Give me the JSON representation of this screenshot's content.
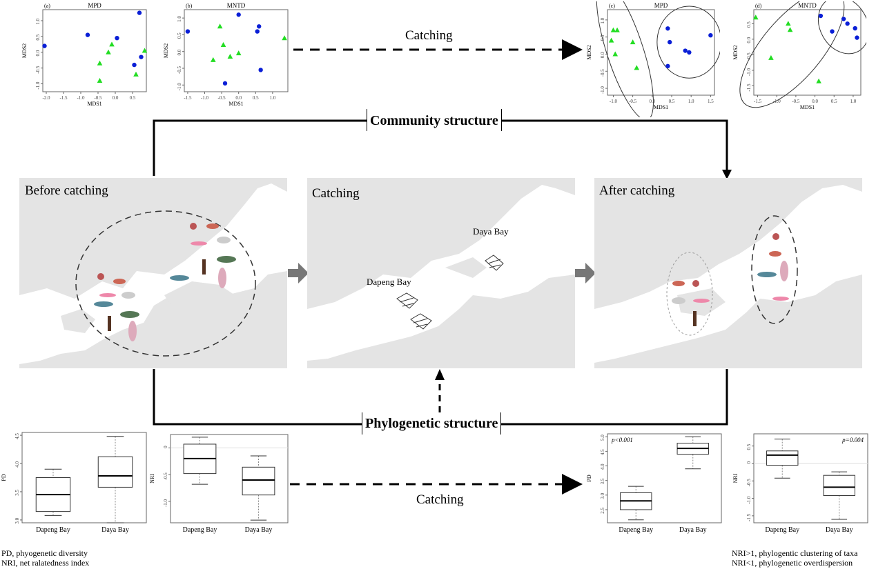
{
  "labels": {
    "catching": "Catching",
    "community_structure": "Community structure",
    "phylogenetic_structure": "Phylogenetic structure",
    "before": "Before catching",
    "catching_panel": "Catching",
    "after": "After catching",
    "daya_bay": "Daya Bay",
    "dapeng_bay": "Dapeng Bay"
  },
  "legend_left": [
    "PD, phyogenetic diversity",
    "NRI, net ralatedness index"
  ],
  "legend_right": [
    "NRI>1, phylogentic clustering of taxa",
    "NRI<1, phylogenetic overdispersion"
  ],
  "colors": {
    "green": "#22dd22",
    "blue": "#0a1fd6",
    "map": "#e4e4e4",
    "arrow": "#777777"
  },
  "chart_data": [
    {
      "type": "scatter",
      "panel": "(a)",
      "title": "MPD",
      "xlabel": "MDS1",
      "ylabel": "MDS2",
      "xticks": [
        "-2.0",
        "-1.5",
        "-1.0",
        "-0.5",
        "0.0",
        "0.5"
      ],
      "yticks": [
        "1.0",
        "0.5",
        "0.0",
        "-0.5",
        "-1.0"
      ],
      "xlim": [
        -2.1,
        0.9
      ],
      "ylim": [
        -1.25,
        1.35
      ],
      "series": [
        {
          "marker": "circle",
          "color": "#0a1fd6",
          "x": [
            -2.05,
            -0.8,
            0.05,
            0.7,
            0.55,
            0.75
          ],
          "y": [
            0.2,
            0.55,
            0.45,
            1.25,
            -0.4,
            -0.15
          ]
        },
        {
          "marker": "triangle",
          "color": "#22dd22",
          "x": [
            -0.1,
            -0.2,
            -0.45,
            -0.45,
            0.6,
            0.85
          ],
          "y": [
            0.25,
            0.0,
            -0.35,
            -0.9,
            -0.7,
            0.05
          ]
        }
      ]
    },
    {
      "type": "scatter",
      "panel": "(b)",
      "title": "MNTD",
      "xlabel": "MDS1",
      "ylabel": "MDS2",
      "xticks": [
        "-1.5",
        "-1.0",
        "-0.5",
        "0.0",
        "0.5",
        "1.0"
      ],
      "yticks": [
        "1.0",
        "0.5",
        "0.0",
        "-0.5",
        "-1.0"
      ],
      "xlim": [
        -1.6,
        1.45
      ],
      "ylim": [
        -1.2,
        1.25
      ],
      "series": [
        {
          "marker": "circle",
          "color": "#0a1fd6",
          "x": [
            -1.5,
            0.0,
            0.55,
            0.6,
            0.65,
            -0.4
          ],
          "y": [
            0.6,
            1.1,
            0.6,
            0.75,
            -0.55,
            -0.95
          ]
        },
        {
          "marker": "triangle",
          "color": "#22dd22",
          "x": [
            -0.55,
            -0.45,
            -0.75,
            -0.25,
            0.0,
            1.35
          ],
          "y": [
            0.75,
            0.2,
            -0.25,
            -0.15,
            -0.05,
            0.4
          ]
        }
      ]
    },
    {
      "type": "scatter",
      "panel": "(c)",
      "title": "MPD",
      "xlabel": "MDS1",
      "ylabel": "MDS2",
      "xticks": [
        "-1.0",
        "-0.5",
        "0.0",
        "0.5",
        "1.0",
        "1.5"
      ],
      "yticks": [
        "1.0",
        "0.5",
        "0.0",
        "-0.5",
        "-1.0"
      ],
      "xlim": [
        -1.15,
        1.6
      ],
      "ylim": [
        -1.2,
        1.3
      ],
      "series": [
        {
          "marker": "circle",
          "color": "#0a1fd6",
          "x": [
            0.4,
            0.45,
            0.95,
            0.4,
            0.85,
            1.5
          ],
          "y": [
            0.75,
            0.35,
            0.05,
            -0.35,
            0.1,
            0.55
          ]
        },
        {
          "marker": "triangle",
          "color": "#22dd22",
          "x": [
            -1.0,
            -0.9,
            -0.5,
            -1.05,
            -0.4,
            -0.95
          ],
          "y": [
            0.7,
            0.7,
            0.35,
            0.4,
            -0.4,
            0.0
          ]
        }
      ]
    },
    {
      "type": "scatter",
      "panel": "(d)",
      "title": "MNTD",
      "xlabel": "MDS1",
      "ylabel": "MDS2",
      "xticks": [
        "-1.5",
        "-1.0",
        "-0.5",
        "0.0",
        "0.5",
        "1.0"
      ],
      "yticks": [
        "0.5",
        "0.0",
        "-0.5",
        "-1.0",
        "-1.5"
      ],
      "xlim": [
        -1.6,
        1.2
      ],
      "ylim": [
        -1.8,
        0.95
      ],
      "series": [
        {
          "marker": "circle",
          "color": "#0a1fd6",
          "x": [
            0.15,
            0.45,
            0.75,
            1.05,
            1.1,
            0.85
          ],
          "y": [
            0.75,
            0.25,
            0.65,
            0.35,
            0.05,
            0.5
          ]
        },
        {
          "marker": "triangle",
          "color": "#22dd22",
          "x": [
            -1.55,
            -0.7,
            -0.65,
            -1.15,
            0.1
          ],
          "y": [
            0.7,
            0.5,
            0.3,
            -0.6,
            -1.35
          ]
        }
      ]
    },
    {
      "type": "box",
      "ylabel": "PD",
      "categories": [
        "Dapeng Bay",
        "Daya Bay"
      ],
      "yticks": [
        "4.5",
        "4.0",
        "3.5",
        "3.0"
      ],
      "ylim": [
        2.95,
        4.55
      ],
      "boxes": [
        {
          "min": 3.08,
          "q1": 3.15,
          "median": 3.45,
          "q3": 3.75,
          "max": 3.9
        },
        {
          "min": 2.95,
          "q1": 3.58,
          "median": 3.78,
          "q3": 4.12,
          "max": 4.48
        }
      ]
    },
    {
      "type": "box",
      "ylabel": "NRI",
      "categories": [
        "Dapeng Bay",
        "Daya Bay"
      ],
      "yticks": [
        "0",
        "-0.5",
        "-1.0"
      ],
      "ylim": [
        -1.4,
        0.25
      ],
      "boxes": [
        {
          "min": -0.68,
          "q1": -0.48,
          "median": -0.2,
          "q3": 0.07,
          "max": 0.2
        },
        {
          "min": -1.35,
          "q1": -0.88,
          "median": -0.6,
          "q3": -0.36,
          "max": -0.15
        }
      ]
    },
    {
      "type": "box",
      "ylabel": "PD",
      "annotation": "p<0.001",
      "categories": [
        "Dapeng Bay",
        "Daya Bay"
      ],
      "yticks": [
        "5.0",
        "4.5",
        "4.0",
        "3.5",
        "3.0",
        "2.5"
      ],
      "ylim": [
        2.05,
        5.1
      ],
      "boxes": [
        {
          "min": 2.15,
          "q1": 2.5,
          "median": 2.8,
          "q3": 3.08,
          "max": 3.3
        },
        {
          "min": 3.9,
          "q1": 4.4,
          "median": 4.6,
          "q3": 4.78,
          "max": 5.0
        }
      ]
    },
    {
      "type": "box",
      "ylabel": "NRI",
      "annotation": "p=0.004",
      "categories": [
        "Dapeng Bay",
        "Daya Bay"
      ],
      "yticks": [
        "0.5",
        "0",
        "-0.5",
        "-1.0",
        "-1.5"
      ],
      "ylim": [
        -1.7,
        0.85
      ],
      "boxes": [
        {
          "min": -0.42,
          "q1": -0.05,
          "median": 0.24,
          "q3": 0.36,
          "max": 0.7
        },
        {
          "min": -1.6,
          "q1": -0.92,
          "median": -0.68,
          "q3": -0.34,
          "max": -0.24
        }
      ]
    }
  ]
}
